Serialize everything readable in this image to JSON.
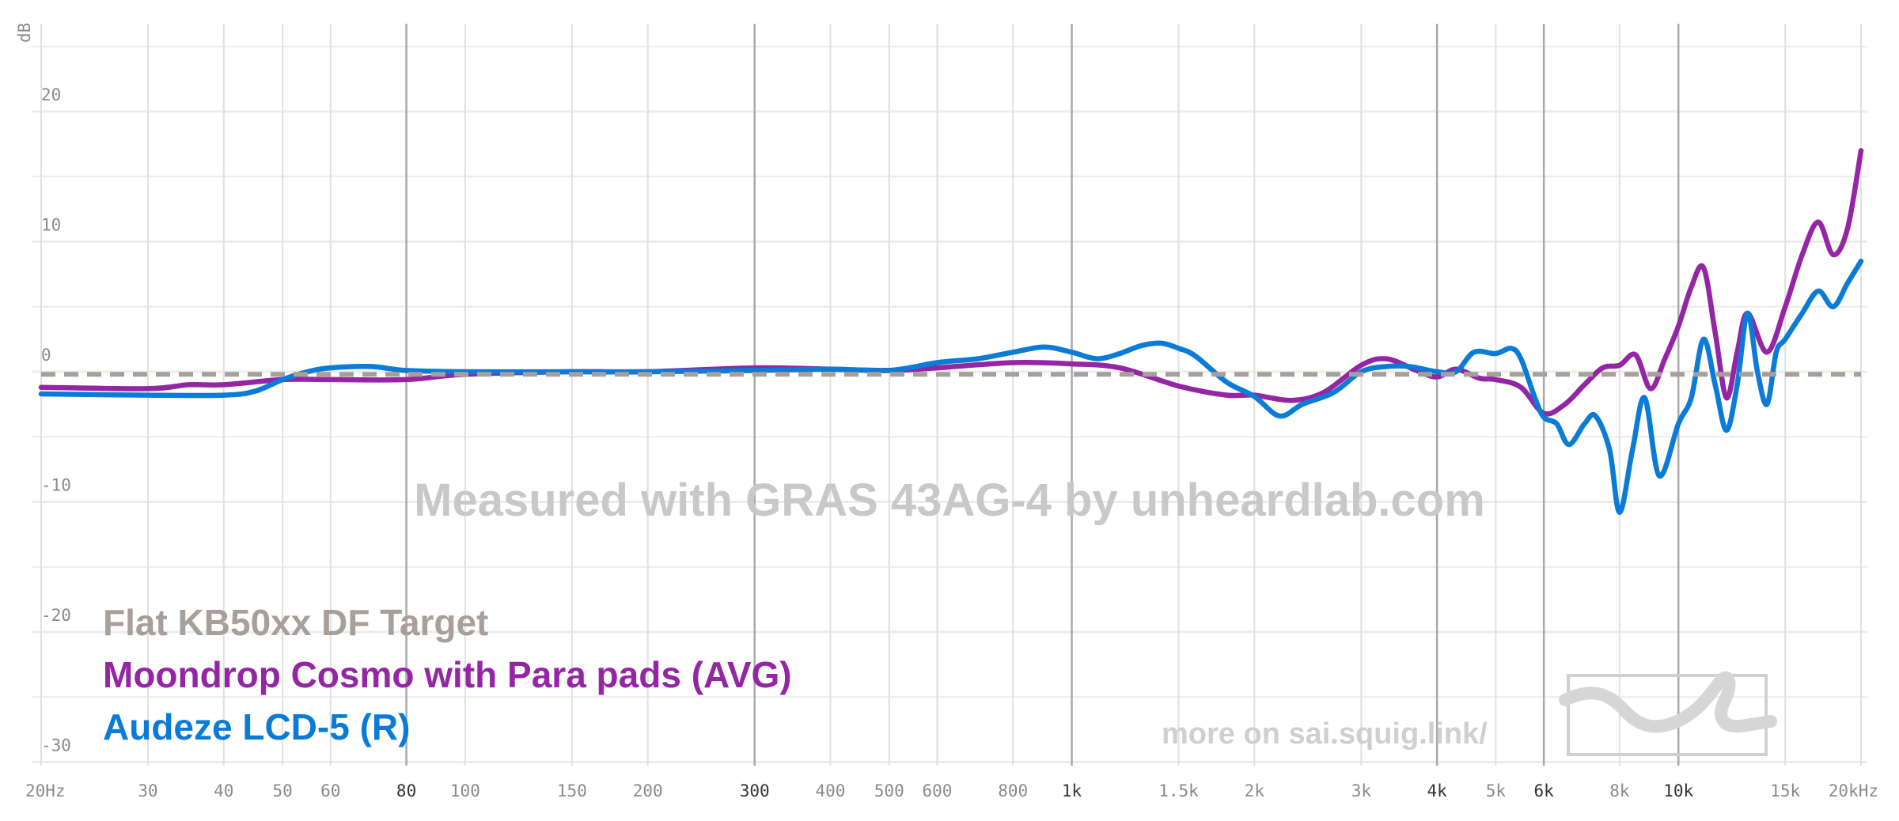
{
  "chart_data": {
    "type": "line",
    "title": "",
    "xlabel": "",
    "ylabel": "dB",
    "xscale": "log",
    "xlim": [
      20,
      20000
    ],
    "ylim": [
      -30,
      25
    ],
    "grid": true,
    "x_ticks": [
      {
        "value": 20,
        "label": "20Hz",
        "major": false
      },
      {
        "value": 30,
        "label": "30",
        "major": false
      },
      {
        "value": 40,
        "label": "40",
        "major": false
      },
      {
        "value": 50,
        "label": "50",
        "major": false
      },
      {
        "value": 60,
        "label": "60",
        "major": false
      },
      {
        "value": 80,
        "label": "80",
        "major": true
      },
      {
        "value": 100,
        "label": "100",
        "major": false
      },
      {
        "value": 150,
        "label": "150",
        "major": false
      },
      {
        "value": 200,
        "label": "200",
        "major": false
      },
      {
        "value": 300,
        "label": "300",
        "major": true
      },
      {
        "value": 400,
        "label": "400",
        "major": false
      },
      {
        "value": 500,
        "label": "500",
        "major": false
      },
      {
        "value": 600,
        "label": "600",
        "major": false
      },
      {
        "value": 800,
        "label": "800",
        "major": false
      },
      {
        "value": 1000,
        "label": "1k",
        "major": true
      },
      {
        "value": 1500,
        "label": "1.5k",
        "major": false
      },
      {
        "value": 2000,
        "label": "2k",
        "major": false
      },
      {
        "value": 3000,
        "label": "3k",
        "major": false
      },
      {
        "value": 4000,
        "label": "4k",
        "major": true
      },
      {
        "value": 5000,
        "label": "5k",
        "major": false
      },
      {
        "value": 6000,
        "label": "6k",
        "major": true
      },
      {
        "value": 8000,
        "label": "8k",
        "major": false
      },
      {
        "value": 10000,
        "label": "10k",
        "major": true
      },
      {
        "value": 15000,
        "label": "15k",
        "major": false
      },
      {
        "value": 20000,
        "label": "20kHz",
        "major": false
      }
    ],
    "y_ticks": [
      {
        "value": 20,
        "label": "20"
      },
      {
        "value": 10,
        "label": "10"
      },
      {
        "value": 0,
        "label": "0"
      },
      {
        "value": -10,
        "label": "-10"
      },
      {
        "value": -20,
        "label": "-20"
      },
      {
        "value": -30,
        "label": "-30"
      }
    ],
    "annotations": {
      "watermark": "Measured with GRAS 43AG-4 by unheardlab.com",
      "footer": "more on sai.squig.link/"
    },
    "legend_position": "bottom-left",
    "series": [
      {
        "name": "Flat KB50xx DF Target",
        "color": "#a89f9a",
        "style": "dashed",
        "x": [
          20,
          20000
        ],
        "y": [
          -0.2,
          -0.2
        ]
      },
      {
        "name": "Moondrop Cosmo with Para pads (AVG)",
        "color": "#9425a4",
        "style": "solid",
        "x": [
          20,
          30,
          35,
          40,
          50,
          60,
          80,
          100,
          150,
          200,
          300,
          400,
          500,
          600,
          800,
          1000,
          1200,
          1500,
          1800,
          2000,
          2300,
          2600,
          3000,
          3300,
          3700,
          4000,
          4300,
          4700,
          5000,
          5500,
          6000,
          6500,
          7000,
          7500,
          8000,
          8500,
          9000,
          9500,
          10000,
          10500,
          11000,
          11500,
          12000,
          12500,
          13000,
          14000,
          15000,
          16000,
          17000,
          18000,
          19000,
          20000
        ],
        "y": [
          -1.2,
          -1.3,
          -1.0,
          -1.0,
          -0.6,
          -0.6,
          -0.6,
          -0.2,
          0,
          0,
          0.3,
          0.2,
          0.1,
          0.3,
          0.7,
          0.6,
          0.3,
          -1.1,
          -1.8,
          -1.8,
          -2.2,
          -1.6,
          0.5,
          1.0,
          0.1,
          -0.4,
          0.2,
          -0.5,
          -0.6,
          -1.2,
          -3.2,
          -2.5,
          -1.0,
          0.3,
          0.5,
          1.3,
          -1.3,
          1.0,
          3.5,
          6.5,
          8.0,
          3.0,
          -2.0,
          1.5,
          4.5,
          1.5,
          5.0,
          9.0,
          11.5,
          9.0,
          11.0,
          17.0
        ]
      },
      {
        "name": "Audeze LCD-5 (R)",
        "color": "#0a7bd6",
        "style": "solid",
        "x": [
          20,
          30,
          40,
          45,
          50,
          55,
          60,
          70,
          80,
          100,
          150,
          200,
          300,
          400,
          500,
          600,
          700,
          800,
          900,
          1000,
          1100,
          1200,
          1300,
          1400,
          1500,
          1600,
          1800,
          2000,
          2200,
          2400,
          2700,
          3000,
          3300,
          3600,
          4000,
          4300,
          4600,
          5000,
          5300,
          5500,
          5800,
          6000,
          6300,
          6600,
          7000,
          7300,
          7700,
          8000,
          8400,
          8800,
          9300,
          10000,
          10500,
          11000,
          11500,
          12000,
          12500,
          13000,
          13500,
          14000,
          14500,
          15000,
          16000,
          17000,
          18000,
          19000,
          20000
        ],
        "y": [
          -1.7,
          -1.8,
          -1.8,
          -1.5,
          -0.6,
          0.0,
          0.3,
          0.4,
          0.1,
          0.0,
          0.0,
          0.0,
          0.1,
          0.2,
          0.1,
          0.7,
          1.0,
          1.5,
          1.9,
          1.5,
          1.0,
          1.4,
          2.0,
          2.2,
          1.8,
          1.2,
          -0.8,
          -1.9,
          -3.4,
          -2.5,
          -1.6,
          0.0,
          0.4,
          0.4,
          0.0,
          0.0,
          1.5,
          1.4,
          1.8,
          1.0,
          -2.0,
          -3.5,
          -4.0,
          -5.6,
          -4.0,
          -3.4,
          -6.0,
          -10.8,
          -6.0,
          -2.0,
          -8.0,
          -4.0,
          -2.0,
          2.5,
          -1.0,
          -4.5,
          -1.0,
          4.5,
          0.0,
          -2.5,
          1.5,
          2.5,
          4.5,
          6.2,
          5.0,
          6.8,
          8.5
        ]
      }
    ]
  }
}
